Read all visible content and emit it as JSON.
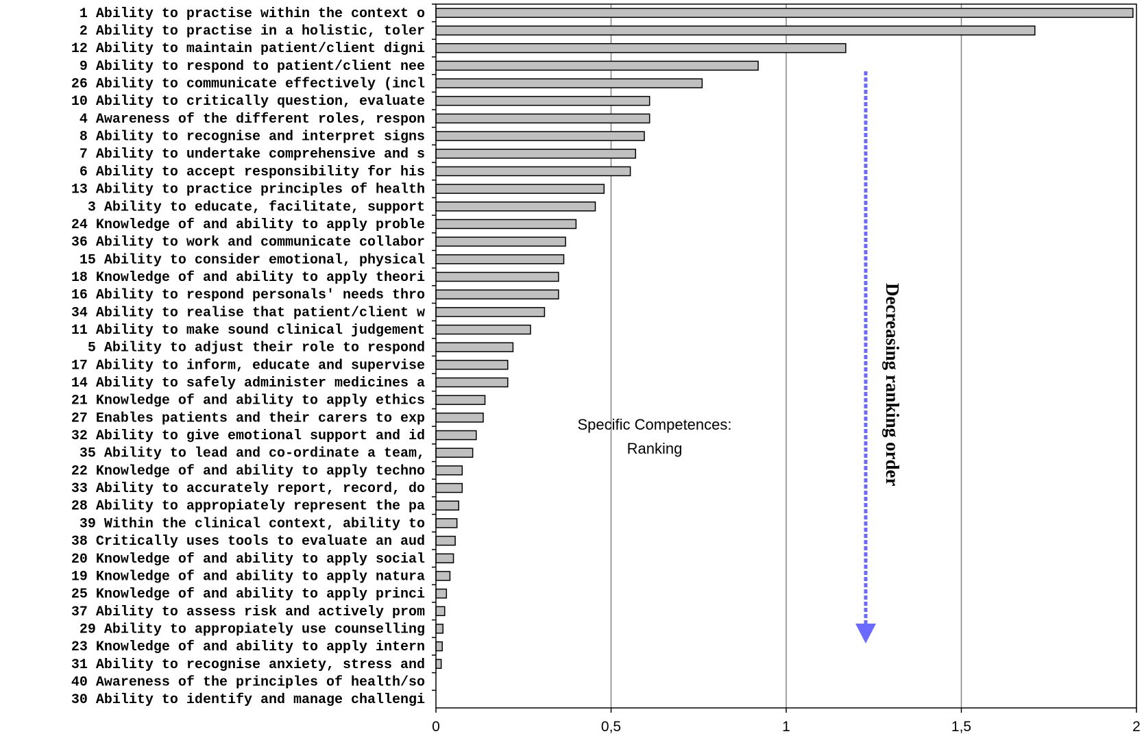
{
  "chart_data": {
    "type": "bar",
    "orientation": "horizontal",
    "xlim": [
      0,
      2
    ],
    "xticks": [
      "0",
      "0,5",
      "1",
      "1,5",
      "2"
    ],
    "grid": "vertical",
    "bar_color": "#c0c0c0",
    "categories": [
      "1 Ability to practise within the context o",
      "2 Ability to practise in a holistic, toler",
      "12 Ability to maintain patient/client digni",
      "9 Ability to respond to patient/client nee",
      "26 Ability to communicate effectively (incl",
      "10 Ability to critically question, evaluate",
      "4 Awareness of the different roles, respon",
      "8 Ability to recognise and interpret signs",
      "7 Ability to undertake comprehensive and s",
      "6 Ability to accept responsibility for his",
      "13 Ability to practice principles of health",
      "3 Ability to educate, facilitate, support ",
      "24 Knowledge of and ability to apply proble",
      "36 Ability to work and communicate collabor",
      "15 Ability to consider emotional, physical ",
      "18 Knowledge of and ability to apply theori",
      "16 Ability to respond personals' needs thro",
      "34 Ability to realise that patient/client w",
      "11 Ability to make sound clinical judgement",
      "5 Ability to adjust their role to respond ",
      "17 Ability to inform, educate and supervise",
      "14 Ability to safely administer medicines a",
      "21 Knowledge of and ability to apply ethics",
      "27 Enables patients and their carers to exp",
      "32 Ability to give emotional support and id",
      "35 Ability to lead and co-ordinate a team, ",
      "22 Knowledge of and ability to apply techno",
      "33 Ability to accurately report, record, do",
      "28 Ability to appropiately represent the pa",
      "39 Within the clinical context, ability to ",
      "38 Critically uses tools to evaluate an aud",
      "20 Knowledge of and ability to apply social",
      "19 Knowledge of and ability to apply natura",
      "25 Knowledge of and ability to apply princi",
      "37 Ability to assess risk and actively prom",
      "29 Ability to appropiately use counselling ",
      "23 Knowledge of and ability to apply intern",
      "31 Ability to recognise anxiety, stress and",
      "40 Awareness of the principles of health/so",
      "30 Ability to identify and manage challengi"
    ],
    "values": [
      1.99,
      1.71,
      1.17,
      0.92,
      0.76,
      0.61,
      0.61,
      0.595,
      0.57,
      0.555,
      0.48,
      0.455,
      0.4,
      0.37,
      0.365,
      0.35,
      0.35,
      0.31,
      0.27,
      0.22,
      0.205,
      0.205,
      0.14,
      0.135,
      0.115,
      0.105,
      0.075,
      0.075,
      0.065,
      0.06,
      0.055,
      0.05,
      0.04,
      0.03,
      0.025,
      0.02,
      0.018,
      0.015,
      0.0,
      0.0
    ],
    "annotations": {
      "center_text_line1": "Specific Competences:",
      "center_text_line2": "Ranking",
      "arrow_label": "Decreasing ranking order",
      "arrow_color": "#6a6aff"
    }
  }
}
